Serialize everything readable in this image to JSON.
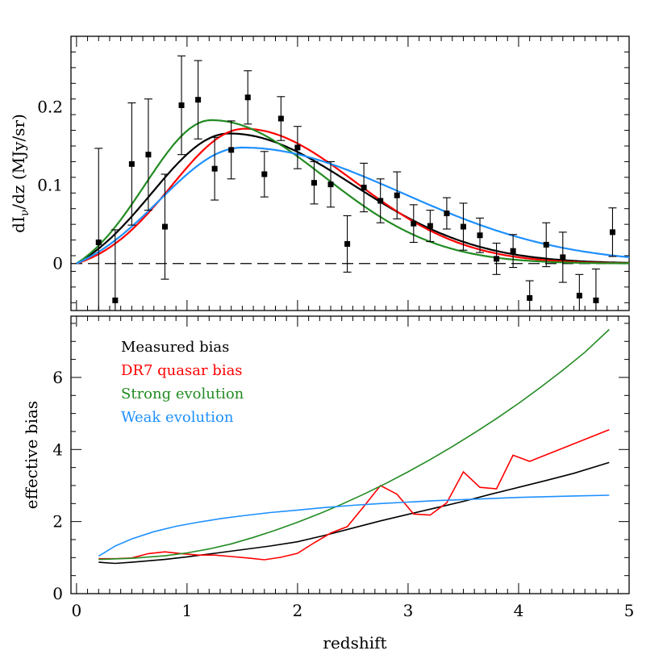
{
  "chart_data": [
    {
      "type": "scatter",
      "title": "",
      "xlabel": "",
      "ylabel": "dI",
      "ylabel_sub": "ν",
      "ylabel_rest": "/dz (MJy/sr)",
      "xlim": [
        -0.05,
        5.0
      ],
      "ylim": [
        -0.06,
        0.29
      ],
      "yticks_major": [
        0,
        0.1,
        0.2
      ],
      "ytick_labels": [
        "0",
        "0.1",
        "0.2"
      ],
      "zero_line": "dashed",
      "points": {
        "name": "",
        "x": [
          0.2,
          0.35,
          0.5,
          0.65,
          0.8,
          0.95,
          1.1,
          1.25,
          1.4,
          1.55,
          1.7,
          1.85,
          2.0,
          2.15,
          2.3,
          2.45,
          2.6,
          2.75,
          2.9,
          3.05,
          3.2,
          3.35,
          3.5,
          3.65,
          3.8,
          3.95,
          4.1,
          4.25,
          4.4,
          4.55,
          4.7,
          4.85
        ],
        "y": [
          0.027,
          -0.047,
          0.127,
          0.139,
          0.047,
          0.202,
          0.209,
          0.121,
          0.145,
          0.212,
          0.114,
          0.185,
          0.148,
          0.103,
          0.101,
          0.025,
          0.097,
          0.08,
          0.087,
          0.051,
          0.048,
          0.064,
          0.047,
          0.036,
          0.006,
          0.016,
          -0.044,
          0.024,
          0.008,
          -0.041,
          -0.047,
          0.04
        ],
        "err": [
          0.12,
          0.09,
          0.078,
          0.071,
          0.067,
          0.063,
          0.05,
          0.04,
          0.037,
          0.034,
          0.029,
          0.028,
          0.027,
          0.027,
          0.029,
          0.036,
          0.031,
          0.028,
          0.03,
          0.024,
          0.02,
          0.02,
          0.03,
          0.022,
          0.02,
          0.021,
          0.022,
          0.028,
          0.032,
          0.027,
          0.04,
          0.031
        ]
      },
      "series": [
        {
          "name": "",
          "color": "#000000",
          "peak_x": 1.38,
          "peak_y": 0.166,
          "width_low": 0.7,
          "width_high": 1.12
        },
        {
          "name": "",
          "color": "#ff0000",
          "peak_x": 1.52,
          "peak_y": 0.172,
          "width_low": 0.66,
          "width_high": 1.0
        },
        {
          "name": "",
          "color": "#228b22",
          "peak_x": 1.22,
          "peak_y": 0.183,
          "width_low": 0.6,
          "width_high": 1.02
        },
        {
          "name": "",
          "color": "#1e90ff",
          "peak_x": 1.5,
          "peak_y": 0.148,
          "width_low": 0.75,
          "width_high": 1.45
        }
      ]
    },
    {
      "type": "line",
      "title": "",
      "xlabel": "redshift",
      "ylabel": "effective bias",
      "xlim": [
        -0.05,
        5.0
      ],
      "ylim": [
        0,
        7.7
      ],
      "xticks_major": [
        0,
        1,
        2,
        3,
        4,
        5
      ],
      "xtick_labels": [
        "0",
        "1",
        "2",
        "3",
        "4",
        "5"
      ],
      "yticks_major": [
        0,
        2,
        4,
        6
      ],
      "ytick_labels": [
        "0",
        "2",
        "4",
        "6"
      ],
      "legend_position": "top-left",
      "series": [
        {
          "name": "Measured bias",
          "color": "#000000",
          "x": [
            0.2,
            0.35,
            0.5,
            0.8,
            1.0,
            1.25,
            1.5,
            1.75,
            2.0,
            2.25,
            2.5,
            2.75,
            3.0,
            3.25,
            3.5,
            3.75,
            4.0,
            4.25,
            4.5,
            4.82
          ],
          "y": [
            0.87,
            0.84,
            0.87,
            0.95,
            1.02,
            1.12,
            1.22,
            1.32,
            1.44,
            1.62,
            1.82,
            2.02,
            2.2,
            2.38,
            2.56,
            2.76,
            2.95,
            3.14,
            3.34,
            3.64
          ]
        },
        {
          "name": "DR7 quasar bias",
          "color": "#ff0000",
          "x": [
            0.2,
            0.35,
            0.5,
            0.65,
            0.8,
            0.95,
            1.1,
            1.25,
            1.4,
            1.55,
            1.7,
            1.85,
            2.0,
            2.15,
            2.3,
            2.45,
            2.6,
            2.75,
            2.9,
            3.05,
            3.2,
            3.35,
            3.5,
            3.65,
            3.8,
            3.95,
            4.1,
            4.82
          ],
          "y": [
            0.97,
            0.97,
            0.99,
            1.11,
            1.16,
            1.11,
            1.07,
            1.07,
            1.03,
            0.99,
            0.94,
            1.01,
            1.12,
            1.41,
            1.68,
            1.86,
            2.42,
            3.0,
            2.76,
            2.21,
            2.18,
            2.52,
            3.38,
            2.95,
            2.91,
            3.84,
            3.67,
            4.55
          ]
        },
        {
          "name": "Strong evolution",
          "color": "#228b22",
          "x": [
            0.2,
            0.5,
            0.8,
            1.0,
            1.2,
            1.4,
            1.6,
            1.8,
            2.0,
            2.2,
            2.4,
            2.6,
            2.8,
            3.0,
            3.2,
            3.4,
            3.6,
            3.8,
            4.0,
            4.2,
            4.4,
            4.6,
            4.82
          ],
          "y": [
            0.95,
            0.98,
            1.05,
            1.13,
            1.24,
            1.38,
            1.56,
            1.76,
            1.98,
            2.22,
            2.48,
            2.76,
            3.06,
            3.38,
            3.72,
            4.08,
            4.46,
            4.86,
            5.28,
            5.73,
            6.2,
            6.7,
            7.33
          ]
        },
        {
          "name": "Weak evolution",
          "color": "#1e90ff",
          "x": [
            0.2,
            0.35,
            0.5,
            0.7,
            0.9,
            1.1,
            1.3,
            1.5,
            1.75,
            2.0,
            2.25,
            2.5,
            2.75,
            3.0,
            3.25,
            3.5,
            3.75,
            4.0,
            4.25,
            4.5,
            4.82
          ],
          "y": [
            1.04,
            1.32,
            1.52,
            1.72,
            1.87,
            1.98,
            2.08,
            2.16,
            2.25,
            2.32,
            2.39,
            2.45,
            2.5,
            2.54,
            2.58,
            2.61,
            2.64,
            2.67,
            2.69,
            2.71,
            2.73
          ]
        }
      ]
    }
  ]
}
